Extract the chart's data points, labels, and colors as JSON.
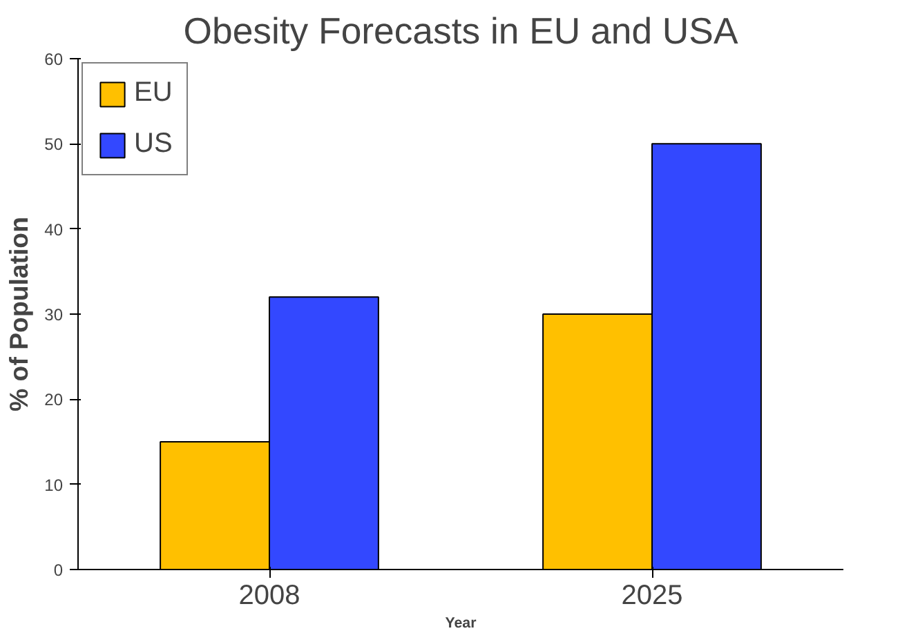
{
  "chart_data": {
    "type": "bar",
    "title": "Obesity Forecasts in EU and USA",
    "xlabel": "Year",
    "ylabel": "% of Population",
    "categories": [
      "2008",
      "2025"
    ],
    "series": [
      {
        "name": "EU",
        "color": "#ffc000",
        "values": [
          15,
          30
        ]
      },
      {
        "name": "US",
        "color": "#3348ff",
        "values": [
          32,
          50
        ]
      }
    ],
    "ylim": [
      0,
      60
    ],
    "yticks": [
      0,
      10,
      20,
      30,
      40,
      50,
      60
    ],
    "grid": false,
    "legend": "top left"
  }
}
